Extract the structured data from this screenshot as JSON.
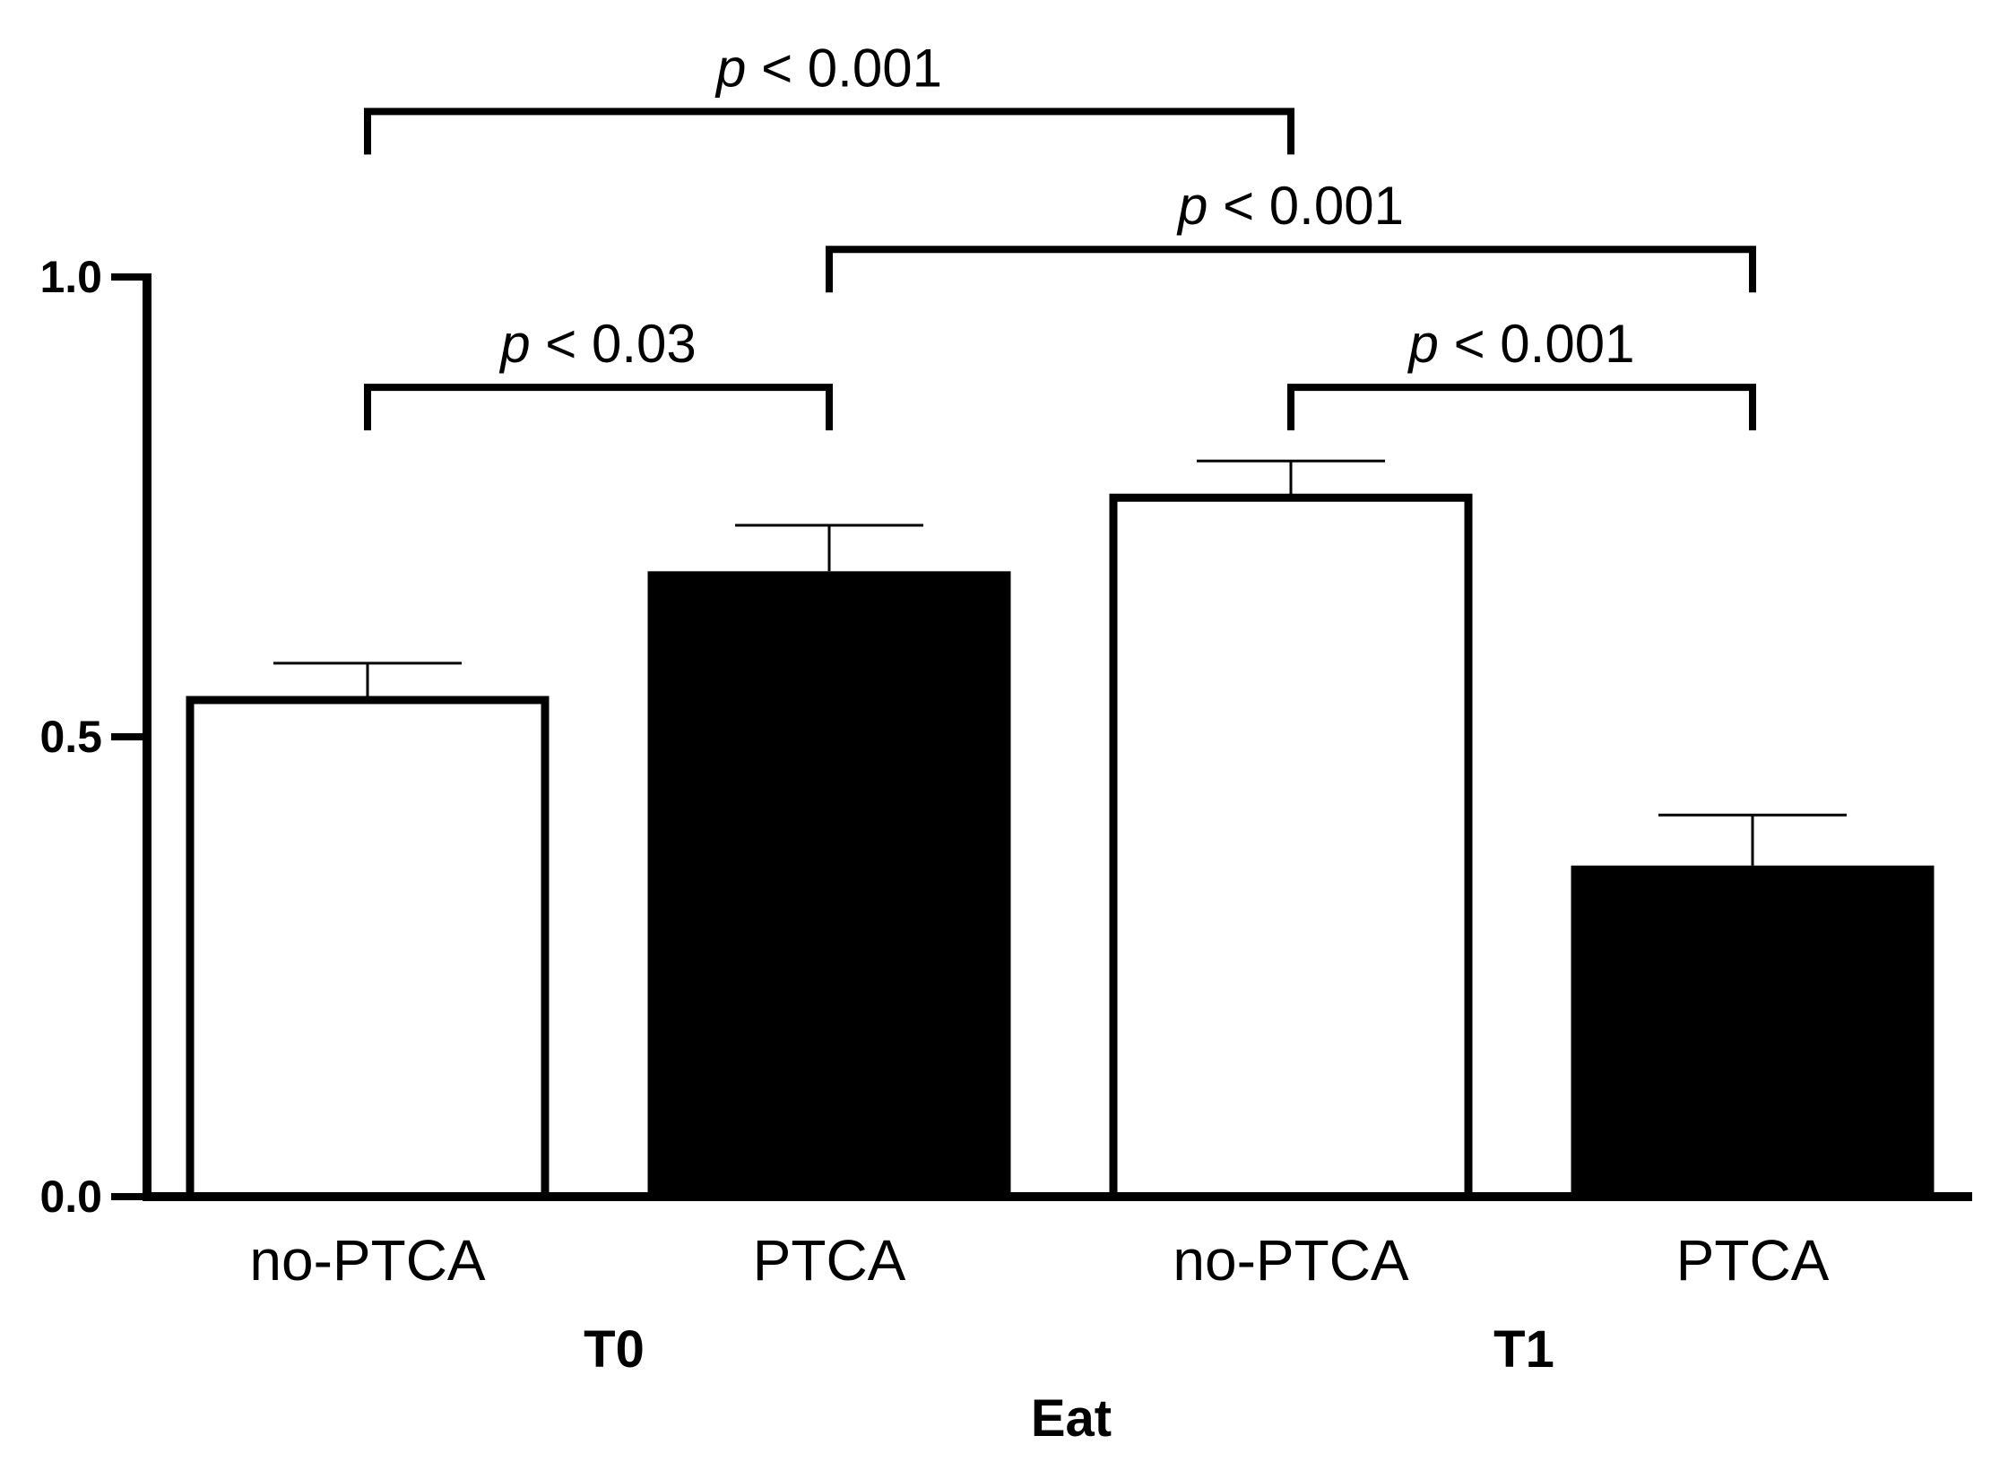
{
  "chart_data": {
    "type": "bar",
    "title": "",
    "xlabel": "Eat",
    "ylabel": "",
    "ylim": [
      0,
      1.0
    ],
    "yticks": [
      {
        "value": 0.0,
        "label": "0.0"
      },
      {
        "value": 0.5,
        "label": "0.5"
      },
      {
        "value": 1.0,
        "label": "1.0"
      }
    ],
    "groups": [
      {
        "label": "T0",
        "categories": [
          "no-PTCA",
          "PTCA"
        ]
      },
      {
        "label": "T1",
        "categories": [
          "no-PTCA",
          "PTCA"
        ]
      }
    ],
    "bars": [
      {
        "group": "T0",
        "category": "no-PTCA",
        "value": 0.54,
        "error": 0.04,
        "fill": "#ffffff"
      },
      {
        "group": "T0",
        "category": "PTCA",
        "value": 0.68,
        "error": 0.05,
        "fill": "#000000"
      },
      {
        "group": "T1",
        "category": "no-PTCA",
        "value": 0.76,
        "error": 0.04,
        "fill": "#ffffff"
      },
      {
        "group": "T1",
        "category": "PTCA",
        "value": 0.36,
        "error": 0.055,
        "fill": "#000000"
      }
    ],
    "comparisons": [
      {
        "from": 0,
        "to": 1,
        "p_symbol": "p",
        "text": "< 0.03",
        "level": 0.88
      },
      {
        "from": 2,
        "to": 3,
        "p_symbol": "p",
        "text": "< 0.001",
        "level": 0.88
      },
      {
        "from": 1,
        "to": 3,
        "p_symbol": "p",
        "text": "< 0.001",
        "level": 1.03
      },
      {
        "from": 0,
        "to": 2,
        "p_symbol": "p",
        "text": "< 0.001",
        "level": 1.18
      }
    ]
  }
}
